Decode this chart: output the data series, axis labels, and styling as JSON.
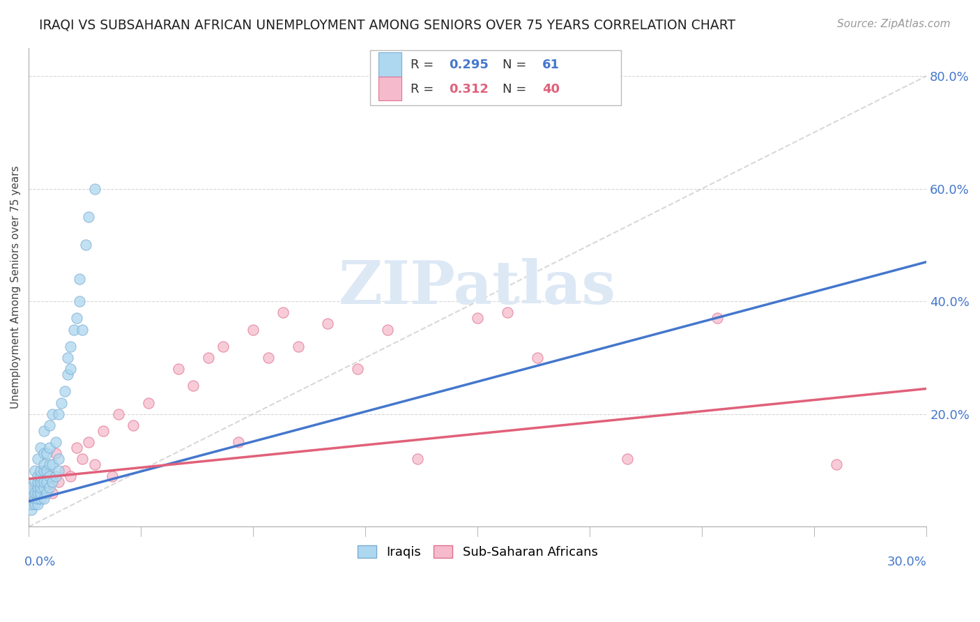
{
  "title": "IRAQI VS SUBSAHARAN AFRICAN UNEMPLOYMENT AMONG SENIORS OVER 75 YEARS CORRELATION CHART",
  "source": "Source: ZipAtlas.com",
  "ylabel": "Unemployment Among Seniors over 75 years",
  "xlim": [
    0.0,
    0.3
  ],
  "ylim": [
    0.0,
    0.85
  ],
  "yticks": [
    0.0,
    0.2,
    0.4,
    0.6,
    0.8
  ],
  "ytick_labels": [
    "",
    "20.0%",
    "40.0%",
    "60.0%",
    "80.0%"
  ],
  "iraqi_color": "#ADD8F0",
  "iraqi_edge": "#7AADD4",
  "subsaharan_color": "#F5BBCC",
  "subsaharan_edge": "#E07090",
  "iraqi_line_color": "#4477CC",
  "subsaharan_line_color": "#E0607A",
  "diagonal_color": "#CCCCCC",
  "watermark": "ZIPatlas",
  "watermark_color": "#DDE8F5",
  "iraqi_x": [
    0.001,
    0.001,
    0.001,
    0.001,
    0.002,
    0.002,
    0.002,
    0.002,
    0.002,
    0.003,
    0.003,
    0.003,
    0.003,
    0.003,
    0.003,
    0.003,
    0.004,
    0.004,
    0.004,
    0.004,
    0.004,
    0.004,
    0.004,
    0.005,
    0.005,
    0.005,
    0.005,
    0.005,
    0.005,
    0.005,
    0.006,
    0.006,
    0.006,
    0.006,
    0.007,
    0.007,
    0.007,
    0.007,
    0.007,
    0.008,
    0.008,
    0.008,
    0.009,
    0.009,
    0.01,
    0.01,
    0.01,
    0.011,
    0.012,
    0.013,
    0.013,
    0.014,
    0.014,
    0.015,
    0.016,
    0.017,
    0.017,
    0.018,
    0.019,
    0.02,
    0.022
  ],
  "iraqi_y": [
    0.03,
    0.04,
    0.06,
    0.07,
    0.04,
    0.05,
    0.06,
    0.08,
    0.1,
    0.04,
    0.05,
    0.06,
    0.07,
    0.08,
    0.09,
    0.12,
    0.05,
    0.06,
    0.07,
    0.08,
    0.09,
    0.1,
    0.14,
    0.05,
    0.07,
    0.08,
    0.1,
    0.11,
    0.13,
    0.17,
    0.06,
    0.08,
    0.1,
    0.13,
    0.07,
    0.09,
    0.11,
    0.14,
    0.18,
    0.08,
    0.11,
    0.2,
    0.09,
    0.15,
    0.1,
    0.12,
    0.2,
    0.22,
    0.24,
    0.27,
    0.3,
    0.28,
    0.32,
    0.35,
    0.37,
    0.4,
    0.44,
    0.35,
    0.5,
    0.55,
    0.6
  ],
  "subsaharan_x": [
    0.001,
    0.002,
    0.003,
    0.004,
    0.005,
    0.006,
    0.007,
    0.008,
    0.009,
    0.01,
    0.012,
    0.014,
    0.016,
    0.018,
    0.02,
    0.022,
    0.025,
    0.028,
    0.03,
    0.035,
    0.04,
    0.05,
    0.055,
    0.06,
    0.065,
    0.07,
    0.075,
    0.08,
    0.085,
    0.09,
    0.1,
    0.11,
    0.12,
    0.13,
    0.15,
    0.16,
    0.17,
    0.2,
    0.23,
    0.27
  ],
  "subsaharan_y": [
    0.05,
    0.07,
    0.06,
    0.08,
    0.1,
    0.07,
    0.09,
    0.06,
    0.13,
    0.08,
    0.1,
    0.09,
    0.14,
    0.12,
    0.15,
    0.11,
    0.17,
    0.09,
    0.2,
    0.18,
    0.22,
    0.28,
    0.25,
    0.3,
    0.32,
    0.15,
    0.35,
    0.3,
    0.38,
    0.32,
    0.36,
    0.28,
    0.35,
    0.12,
    0.37,
    0.38,
    0.3,
    0.12,
    0.37,
    0.11
  ],
  "iraqi_line_x0": 0.0,
  "iraqi_line_y0": 0.045,
  "iraqi_line_x1": 0.3,
  "iraqi_line_y1": 0.47,
  "subsaharan_line_x0": 0.0,
  "subsaharan_line_y0": 0.085,
  "subsaharan_line_x1": 0.3,
  "subsaharan_line_y1": 0.245
}
